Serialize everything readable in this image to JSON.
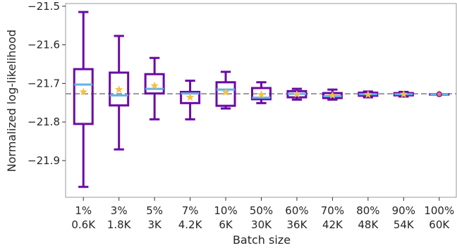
{
  "chart_data": {
    "type": "box",
    "title": "",
    "xlabel": "Batch size",
    "ylabel": "Normalized log-likelihood",
    "ylim": [
      -21.995,
      -21.493
    ],
    "yticks": [
      -21.5,
      -21.6,
      -21.7,
      -21.8,
      -21.9
    ],
    "ytick_labels": [
      "−21.5",
      "−21.6",
      "−21.7",
      "−21.8",
      "−21.9"
    ],
    "categories": [
      "1%",
      "3%",
      "5%",
      "7%",
      "10%",
      "50%",
      "60%",
      "70%",
      "80%",
      "90%",
      "100%"
    ],
    "category_sublabels": [
      "0.6K",
      "1.8K",
      "3K",
      "4.2K",
      "6K",
      "30K",
      "36K",
      "42K",
      "48K",
      "54K",
      "60K"
    ],
    "reference_line": -21.727,
    "boxes": [
      {
        "whislo": -21.968,
        "q1": -21.805,
        "med": -21.703,
        "q3": -21.663,
        "whishi": -21.515,
        "mean": -21.722
      },
      {
        "whislo": -21.871,
        "q1": -21.757,
        "med": -21.731,
        "q3": -21.672,
        "whishi": -21.577,
        "mean": -21.716
      },
      {
        "whislo": -21.793,
        "q1": -21.726,
        "med": -21.714,
        "q3": -21.676,
        "whishi": -21.634,
        "mean": -21.706
      },
      {
        "whislo": -21.793,
        "q1": -21.751,
        "med": -21.726,
        "q3": -21.722,
        "whishi": -21.693,
        "mean": -21.736
      },
      {
        "whislo": -21.765,
        "q1": -21.758,
        "med": -21.716,
        "q3": -21.697,
        "whishi": -21.67,
        "mean": -21.723
      },
      {
        "whislo": -21.751,
        "q1": -21.741,
        "med": -21.737,
        "q3": -21.712,
        "whishi": -21.697,
        "mean": -21.729
      },
      {
        "whislo": -21.742,
        "q1": -21.736,
        "med": -21.727,
        "q3": -21.72,
        "whishi": -21.714,
        "mean": -21.728
      },
      {
        "whislo": -21.742,
        "q1": -21.738,
        "med": -21.733,
        "q3": -21.725,
        "whishi": -21.716,
        "mean": -21.731
      },
      {
        "whislo": -21.736,
        "q1": -21.732,
        "med": -21.728,
        "q3": -21.724,
        "whishi": -21.721,
        "mean": -21.729
      },
      {
        "whislo": -21.734,
        "q1": -21.731,
        "med": -21.728,
        "q3": -21.725,
        "whishi": -21.722,
        "mean": -21.728
      },
      {
        "whislo": -21.728,
        "q1": -21.728,
        "med": -21.728,
        "q3": -21.728,
        "whishi": -21.728,
        "mean": -21.728
      }
    ],
    "colors": {
      "box": "#6a0aa6",
      "median": "#63b1e6",
      "mean_marker": "#f5c142",
      "reference_line": "#9a9a9a",
      "axes": "#9a9a9a"
    }
  }
}
